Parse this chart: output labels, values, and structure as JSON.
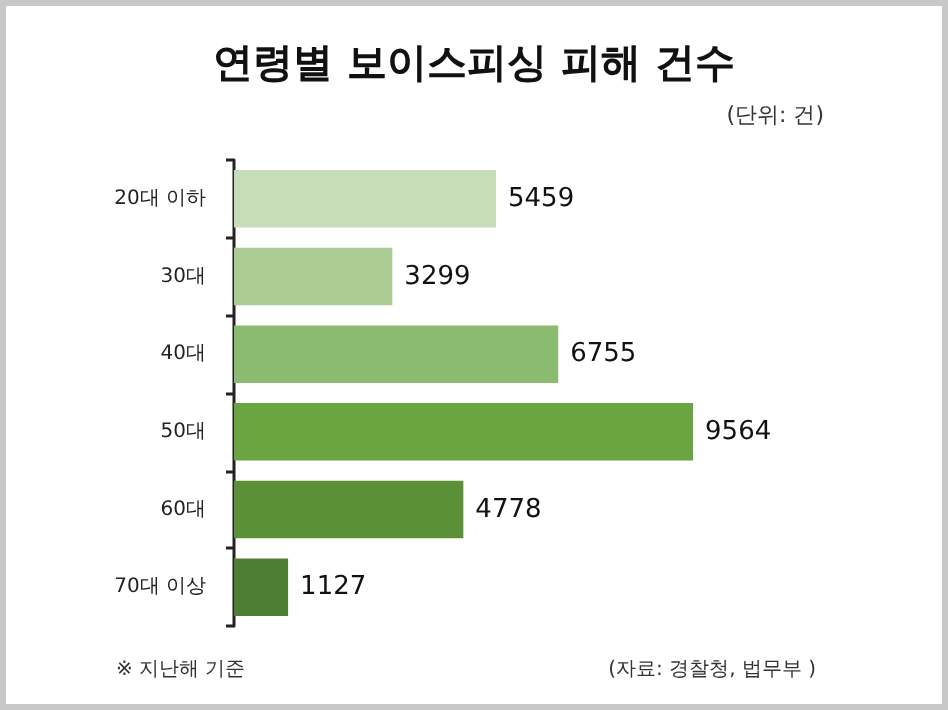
{
  "chart_data": {
    "type": "bar",
    "orientation": "horizontal",
    "title": "연령별 보이스피싱 피해 건수",
    "annotations": [
      "(단위: 건)",
      "※ 지난해 기준",
      "(자료: 경찰청, 법무부 )"
    ],
    "categories": [
      "20대 이하",
      "30대",
      "40대",
      "50대",
      "60대",
      "70대 이상"
    ],
    "values": [
      5459,
      3299,
      6755,
      9564,
      4778,
      1127
    ],
    "colors": [
      "#c7dcb9",
      "#abcc95",
      "#8bbb6e",
      "#6aa542",
      "#5c9038",
      "#4e7e31"
    ],
    "data_labels": true,
    "grid": false
  }
}
